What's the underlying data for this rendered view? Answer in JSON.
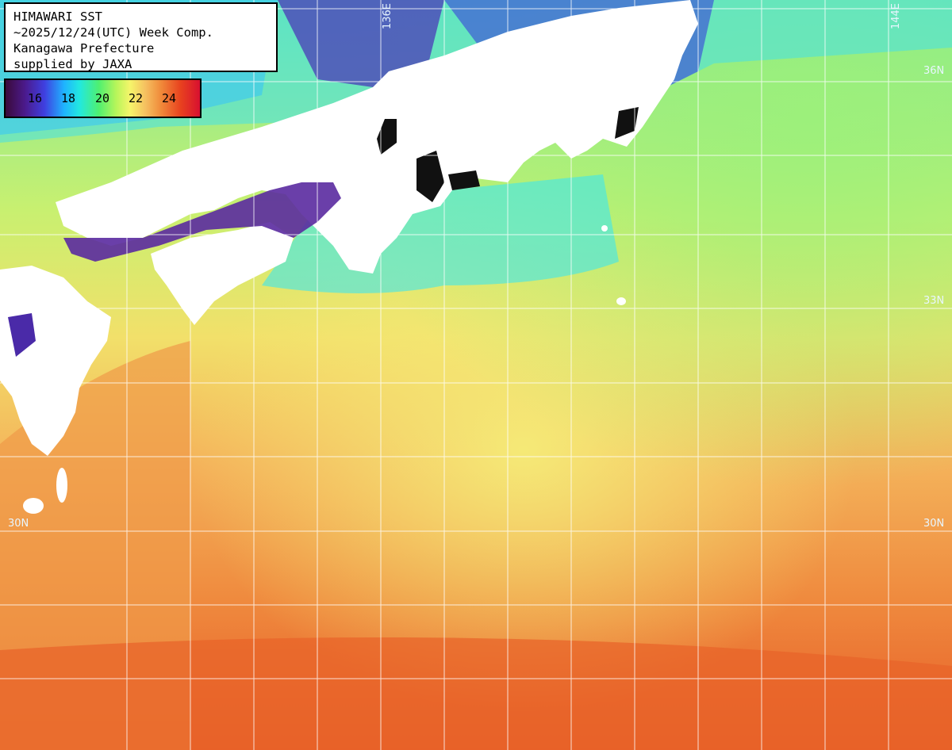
{
  "title_box": {
    "lines": [
      "HIMAWARI SST",
      "~2025/12/24(UTC) Week Comp.",
      "Kanagawa Prefecture",
      "supplied by JAXA"
    ]
  },
  "legend": {
    "ticks": [
      "16",
      "18",
      "20",
      "22",
      "24"
    ]
  },
  "grid_labels": {
    "lon_136": "136E",
    "lon_144": "144E",
    "lat_36": "36N",
    "lat_33": "33N",
    "lat_30_left": "30N",
    "lat_30_right": "30N"
  },
  "colors": {
    "land": "#ffffff",
    "grid": "#ffffff",
    "cold": "#4b1a8c",
    "warm": "#e8421f"
  }
}
